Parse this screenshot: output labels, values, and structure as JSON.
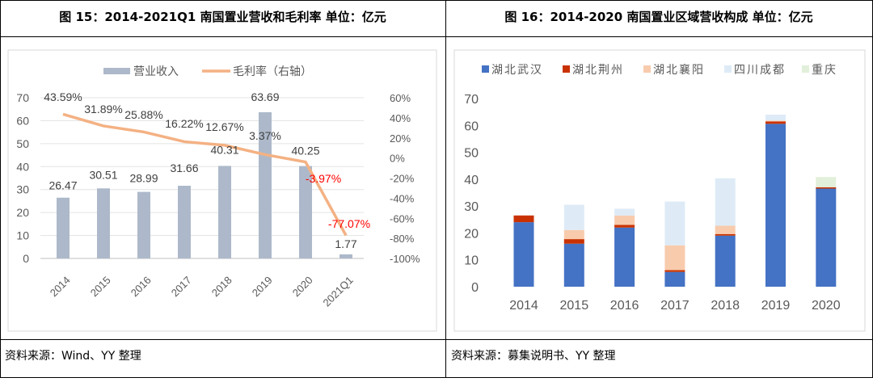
{
  "left": {
    "title": "图 15：2014-2021Q1 南国置业营收和毛利率 单位：亿元",
    "source": "资料来源：Wind、YY 整理"
  },
  "right": {
    "title": "图 16：2014-2020 南国置业区域营收构成 单位：亿元",
    "source": "资料来源：募集说明书、YY 整理"
  },
  "chart_data": [
    {
      "type": "bar+line",
      "categories": [
        "2014",
        "2015",
        "2016",
        "2017",
        "2018",
        "2019",
        "2020",
        "2021Q1"
      ],
      "series": [
        {
          "name": "营业收入",
          "type": "bar",
          "axis": "left",
          "color": "#adb9ca",
          "values": [
            26.47,
            30.51,
            28.99,
            31.66,
            40.31,
            63.69,
            40.25,
            1.77
          ],
          "labels": [
            "26.47",
            "30.51",
            "28.99",
            "31.66",
            "40.31",
            "63.69",
            "40.25",
            "1.77"
          ]
        },
        {
          "name": "毛利率（右轴）",
          "type": "line",
          "axis": "right",
          "color": "#f4b183",
          "values": [
            43.59,
            31.89,
            25.88,
            16.22,
            12.67,
            3.37,
            -3.97,
            -77.07
          ],
          "labels": [
            "43.59%",
            "31.89%",
            "25.88%",
            "16.22%",
            "12.67%",
            "3.37%",
            "-3.97%",
            "-77.07%"
          ]
        }
      ],
      "negative_label_color": "#ff0000",
      "ylim": [
        0,
        70
      ],
      "yticks": [
        "0",
        "10",
        "20",
        "30",
        "40",
        "50",
        "60",
        "70"
      ],
      "y2lim": [
        -100,
        60
      ],
      "y2ticks": [
        "-100%",
        "-80%",
        "-60%",
        "-40%",
        "-20%",
        "0%",
        "20%",
        "40%",
        "60%"
      ],
      "grid": true,
      "legend": "top"
    },
    {
      "type": "stacked-bar",
      "categories": [
        "2014",
        "2015",
        "2016",
        "2017",
        "2018",
        "2019",
        "2020"
      ],
      "series": [
        {
          "name": "湖北武汉",
          "color": "#4472c4",
          "values": [
            24.0,
            16.0,
            22.0,
            5.5,
            19.0,
            60.6,
            36.5
          ]
        },
        {
          "name": "湖北荆州",
          "color": "#c93200",
          "values": [
            2.5,
            1.7,
            1.0,
            0.7,
            0.6,
            0.9,
            0.5
          ]
        },
        {
          "name": "湖北襄阳",
          "color": "#f8cbad",
          "values": [
            0,
            3.4,
            3.5,
            9.2,
            3.1,
            0.3,
            0
          ]
        },
        {
          "name": "四川成都",
          "color": "#deebf7",
          "values": [
            0,
            9.4,
            2.5,
            16.3,
            17.6,
            2.2,
            0
          ]
        },
        {
          "name": "重庆",
          "color": "#e2efda",
          "values": [
            0,
            0,
            0,
            0,
            0,
            0,
            3.8
          ]
        }
      ],
      "ylim": [
        0,
        70
      ],
      "yticks": [
        "0",
        "10",
        "20",
        "30",
        "40",
        "50",
        "60",
        "70"
      ],
      "grid": false,
      "legend": "top"
    }
  ]
}
